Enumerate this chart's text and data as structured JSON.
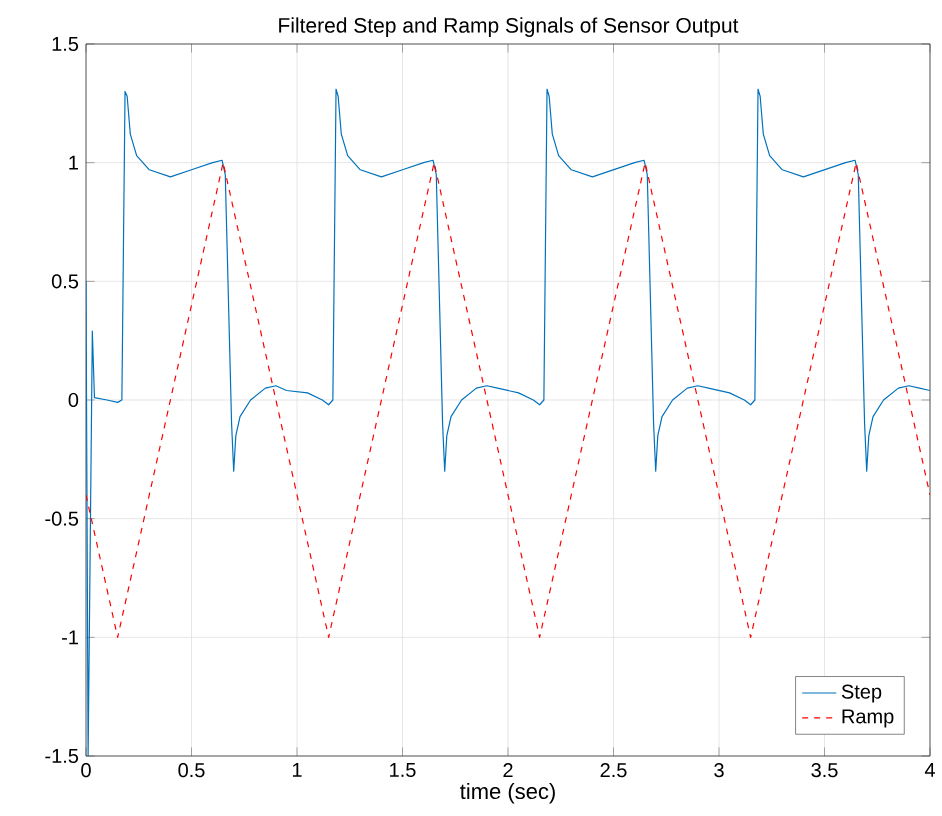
{
  "chart_data": {
    "type": "line",
    "title": "Filtered Step and Ramp Signals of Sensor Output",
    "xlabel": "time (sec)",
    "xlim": [
      0,
      4
    ],
    "ylim": [
      -1.5,
      1.5
    ],
    "xticks": [
      0,
      0.5,
      1,
      1.5,
      2,
      2.5,
      3,
      3.5,
      4
    ],
    "yticks": [
      -1.5,
      -1,
      -0.5,
      0,
      0.5,
      1,
      1.5
    ],
    "grid": true,
    "legend": "bottom right",
    "marker": "none",
    "series": [
      {
        "name": "Step",
        "color": "#0072bd",
        "line_style": "solid",
        "x": [
          0,
          0.01,
          0.03,
          0.04,
          0.1,
          0.15,
          0.17,
          0.185,
          0.195,
          0.21,
          0.24,
          0.3,
          0.4,
          0.5,
          0.6,
          0.645,
          0.66,
          0.69,
          0.7,
          0.71,
          0.73,
          0.78,
          0.85,
          0.9,
          0.95,
          1.05,
          1.12,
          1.15,
          1.17,
          1.185,
          1.195,
          1.21,
          1.24,
          1.3,
          1.4,
          1.5,
          1.6,
          1.645,
          1.66,
          1.69,
          1.7,
          1.71,
          1.73,
          1.78,
          1.85,
          1.9,
          1.95,
          2.05,
          2.12,
          2.15,
          2.17,
          2.185,
          2.195,
          2.21,
          2.24,
          2.3,
          2.4,
          2.5,
          2.6,
          2.645,
          2.66,
          2.69,
          2.7,
          2.71,
          2.73,
          2.78,
          2.85,
          2.9,
          2.95,
          3.05,
          3.12,
          3.15,
          3.17,
          3.185,
          3.195,
          3.21,
          3.24,
          3.3,
          3.4,
          3.5,
          3.6,
          3.645,
          3.66,
          3.69,
          3.7,
          3.71,
          3.73,
          3.78,
          3.85,
          3.9,
          3.95,
          4
        ],
        "values": [
          0.5,
          -1.5,
          0.29,
          0.01,
          0.0,
          -0.01,
          0.0,
          1.3,
          1.28,
          1.12,
          1.03,
          0.97,
          0.94,
          0.97,
          1.0,
          1.01,
          0.95,
          -0.1,
          -0.3,
          -0.15,
          -0.07,
          0.0,
          0.05,
          0.06,
          0.04,
          0.03,
          0.0,
          -0.02,
          0.0,
          1.31,
          1.28,
          1.12,
          1.03,
          0.97,
          0.94,
          0.97,
          1.0,
          1.01,
          0.95,
          -0.1,
          -0.3,
          -0.15,
          -0.07,
          0.0,
          0.05,
          0.06,
          0.05,
          0.03,
          0.0,
          -0.02,
          0.0,
          1.31,
          1.28,
          1.12,
          1.03,
          0.97,
          0.94,
          0.97,
          1.0,
          1.01,
          0.95,
          -0.1,
          -0.3,
          -0.15,
          -0.07,
          0.0,
          0.05,
          0.06,
          0.05,
          0.03,
          0.0,
          -0.02,
          0.0,
          1.31,
          1.28,
          1.12,
          1.03,
          0.97,
          0.94,
          0.97,
          1.0,
          1.01,
          0.95,
          -0.1,
          -0.3,
          -0.15,
          -0.07,
          0.0,
          0.05,
          0.06,
          0.05,
          0.04
        ]
      },
      {
        "name": "Ramp",
        "color": "#ff0000",
        "line_style": "dashed",
        "x": [
          0,
          0.15,
          0.65,
          1.15,
          1.65,
          2.15,
          2.65,
          3.15,
          3.65,
          4
        ],
        "values": [
          -0.4,
          -1,
          1,
          -1,
          1,
          -1,
          1,
          -1,
          1,
          -0.4
        ]
      }
    ]
  }
}
